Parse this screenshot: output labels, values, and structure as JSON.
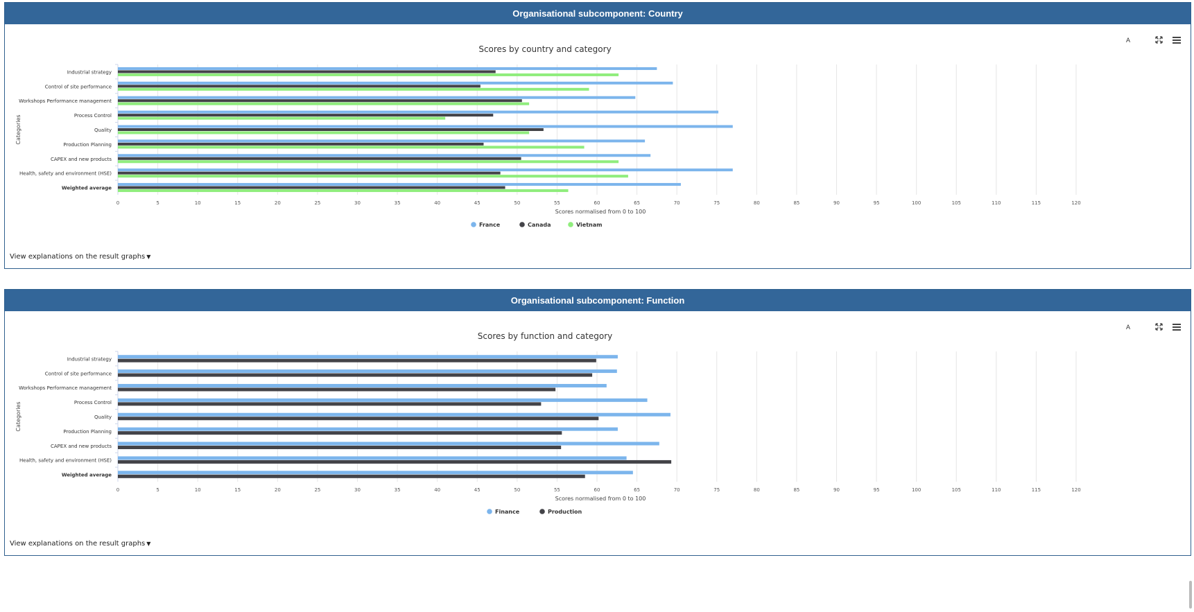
{
  "panels": [
    {
      "header": "Organisational subcomponent: Country",
      "tool_a": "A",
      "explain_link": "View explanations on the result graphs",
      "chart_data": {
        "type": "bar",
        "orientation": "horizontal",
        "title": "Scores by country and category",
        "ylabel": "Categories",
        "xlabel": "Scores normalised from 0 to 100",
        "xlim": [
          0,
          120
        ],
        "xticks": [
          0,
          5,
          10,
          15,
          20,
          25,
          30,
          35,
          40,
          45,
          50,
          55,
          60,
          65,
          70,
          75,
          80,
          85,
          90,
          95,
          100,
          105,
          110,
          115,
          120
        ],
        "grid": true,
        "legend_position": "bottom-center",
        "categories": [
          "Industrial strategy",
          "Control of site performance",
          "Workshops Performance management",
          "Process Control",
          "Quality",
          "Production Planning",
          "CAPEX and new products",
          "Health, safety and environment (HSE)",
          "Weighted average"
        ],
        "bold_categories": [
          "Weighted average"
        ],
        "series": [
          {
            "name": "France",
            "color": "#7cb5ec",
            "values": [
              67.5,
              69.5,
              64.8,
              75.2,
              77.0,
              66.0,
              66.7,
              77.0,
              70.5
            ]
          },
          {
            "name": "Canada",
            "color": "#434348",
            "values": [
              47.3,
              45.4,
              50.6,
              47.0,
              53.3,
              45.8,
              50.5,
              47.9,
              48.5
            ]
          },
          {
            "name": "Vietnam",
            "color": "#90ed7d",
            "values": [
              62.7,
              59.0,
              51.5,
              41.0,
              51.5,
              58.4,
              62.7,
              63.9,
              56.4
            ]
          }
        ]
      }
    },
    {
      "header": "Organisational subcomponent: Function",
      "tool_a": "A",
      "explain_link": "View explanations on the result graphs",
      "chart_data": {
        "type": "bar",
        "orientation": "horizontal",
        "title": "Scores by function and category",
        "ylabel": "Categories",
        "xlabel": "Scores normalised from 0 to 100",
        "xlim": [
          0,
          120
        ],
        "xticks": [
          0,
          5,
          10,
          15,
          20,
          25,
          30,
          35,
          40,
          45,
          50,
          55,
          60,
          65,
          70,
          75,
          80,
          85,
          90,
          95,
          100,
          105,
          110,
          115,
          120
        ],
        "grid": true,
        "legend_position": "bottom-center",
        "categories": [
          "Industrial strategy",
          "Control of site performance",
          "Workshops Performance management",
          "Process Control",
          "Quality",
          "Production Planning",
          "CAPEX and new products",
          "Health, safety and environment (HSE)",
          "Weighted average"
        ],
        "bold_categories": [
          "Weighted average"
        ],
        "series": [
          {
            "name": "Finance",
            "color": "#7cb5ec",
            "values": [
              62.6,
              62.5,
              61.2,
              66.3,
              69.2,
              62.6,
              67.8,
              63.7,
              64.5
            ]
          },
          {
            "name": "Production",
            "color": "#434348",
            "values": [
              59.9,
              59.4,
              54.8,
              53.0,
              60.2,
              55.6,
              55.5,
              69.3,
              58.5
            ]
          }
        ]
      }
    }
  ]
}
